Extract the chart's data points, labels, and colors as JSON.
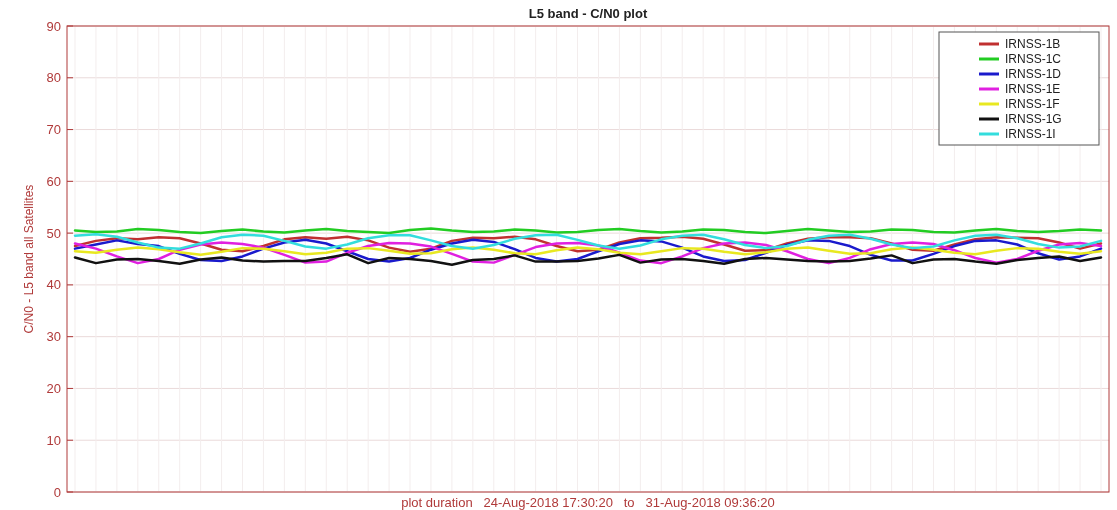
{
  "chart_data": {
    "type": "line",
    "title": "L5 band - C/N0 plot",
    "xlabel": "plot duration   24-Aug-2018 17:30:20   to   31-Aug-2018 09:36:20",
    "ylabel": "C/N0 - L5 band all Satellites",
    "categories": [
      null,
      null,
      null,
      null,
      null,
      null,
      null,
      null,
      null,
      null,
      null,
      null,
      null,
      null,
      null,
      null,
      null,
      null,
      null,
      null,
      null,
      null,
      null,
      null,
      null,
      null,
      null,
      null,
      null,
      null,
      null,
      null,
      null,
      null,
      null,
      null,
      null,
      null,
      null,
      null,
      null,
      null,
      null,
      null,
      null,
      null,
      null,
      null,
      null,
      null
    ],
    "ylim": [
      0,
      90
    ],
    "yticks": [
      0,
      10,
      20,
      30,
      40,
      50,
      60,
      70,
      80,
      90
    ],
    "grid": true,
    "legend": "top right",
    "tick_labels": "y",
    "series": [
      {
        "name": "IRNSS-1B",
        "color": "#c03030",
        "values": [
          47.5,
          48.5,
          49.0,
          48.8,
          49.2,
          49.0,
          48.0,
          46.8,
          46.5,
          47.5,
          48.8,
          49.2,
          48.9,
          49.3,
          48.6,
          47.2,
          46.4,
          47.0,
          48.5,
          49.1,
          49.0,
          49.3,
          48.8,
          47.5,
          46.5,
          46.8,
          48.2,
          49.0,
          49.1,
          49.3,
          48.9,
          47.8,
          46.6,
          46.7,
          48.0,
          48.9,
          49.2,
          49.2,
          49.0,
          48.0,
          46.8,
          46.6,
          47.8,
          48.8,
          49.2,
          49.1,
          49.0,
          48.2,
          47.0,
          48.0
        ]
      },
      {
        "name": "IRNSS-1C",
        "color": "#22cc22",
        "values": [
          50.5,
          50.2,
          50.3,
          50.8,
          50.6,
          50.2,
          50.0,
          50.4,
          50.7,
          50.3,
          50.1,
          50.5,
          50.8,
          50.4,
          50.2,
          50.0,
          50.6,
          50.9,
          50.5,
          50.2,
          50.3,
          50.7,
          50.5,
          50.1,
          50.2,
          50.6,
          50.8,
          50.4,
          50.1,
          50.3,
          50.7,
          50.6,
          50.2,
          50.0,
          50.4,
          50.8,
          50.5,
          50.2,
          50.3,
          50.7,
          50.6,
          50.2,
          50.1,
          50.5,
          50.8,
          50.4,
          50.2,
          50.4,
          50.7,
          50.5
        ]
      },
      {
        "name": "IRNSS-1D",
        "color": "#1a1acc",
        "values": [
          47.0,
          47.8,
          48.6,
          47.9,
          47.5,
          46.0,
          44.8,
          44.6,
          45.5,
          47.0,
          48.2,
          48.7,
          48.0,
          46.5,
          45.0,
          44.5,
          45.2,
          46.8,
          48.0,
          48.7,
          48.3,
          46.9,
          45.2,
          44.5,
          45.0,
          46.5,
          47.9,
          48.6,
          48.4,
          47.2,
          45.5,
          44.6,
          44.8,
          46.2,
          47.7,
          48.6,
          48.5,
          47.5,
          45.8,
          44.7,
          44.7,
          46.0,
          47.5,
          48.5,
          48.6,
          47.8,
          46.1,
          44.9,
          45.5,
          47.0
        ]
      },
      {
        "name": "IRNSS-1E",
        "color": "#e020e0",
        "values": [
          48.0,
          47.0,
          45.5,
          44.2,
          45.0,
          46.8,
          47.8,
          48.2,
          47.9,
          47.2,
          45.8,
          44.3,
          44.5,
          46.2,
          47.5,
          48.1,
          48.0,
          47.4,
          46.0,
          44.5,
          44.3,
          45.8,
          47.3,
          48.0,
          48.1,
          47.6,
          46.2,
          44.7,
          44.2,
          45.5,
          47.1,
          48.0,
          48.2,
          47.7,
          46.5,
          45.0,
          44.2,
          45.2,
          46.9,
          47.9,
          48.2,
          47.9,
          46.7,
          45.2,
          44.3,
          45.0,
          46.6,
          47.8,
          48.1,
          47.5
        ]
      },
      {
        "name": "IRNSS-1F",
        "color": "#e8e820",
        "values": [
          46.5,
          46.2,
          46.8,
          47.2,
          46.9,
          46.3,
          45.8,
          46.4,
          47.1,
          47.0,
          46.5,
          45.9,
          46.2,
          47.0,
          47.1,
          46.6,
          46.0,
          46.1,
          46.9,
          47.2,
          46.8,
          46.1,
          45.9,
          46.7,
          47.2,
          46.9,
          46.2,
          45.9,
          46.5,
          47.1,
          47.0,
          46.4,
          45.9,
          46.3,
          47.0,
          47.2,
          46.6,
          46.0,
          46.1,
          46.9,
          47.2,
          46.8,
          46.2,
          45.9,
          46.6,
          47.1,
          47.0,
          46.4,
          46.0,
          46.5
        ]
      },
      {
        "name": "IRNSS-1G",
        "color": "#111111",
        "values": [
          45.3,
          44.2,
          44.9,
          45.0,
          44.6,
          44.1,
          44.9,
          45.3,
          44.7,
          44.5,
          44.6,
          44.6,
          45.2,
          45.9,
          44.2,
          45.2,
          45.0,
          44.6,
          43.9,
          44.8,
          45.0,
          45.7,
          44.5,
          44.5,
          44.6,
          45.1,
          45.8,
          44.3,
          44.9,
          45.0,
          44.6,
          44.1,
          45.0,
          45.2,
          44.9,
          44.6,
          44.5,
          44.6,
          45.1,
          45.7,
          44.2,
          44.9,
          45.0,
          44.5,
          44.1,
          44.8,
          45.2,
          45.5,
          44.6,
          45.3
        ]
      },
      {
        "name": "IRNSS-1I",
        "color": "#33dddd",
        "values": [
          49.5,
          49.8,
          49.3,
          48.2,
          47.2,
          47.0,
          48.0,
          49.2,
          49.7,
          49.5,
          48.5,
          47.4,
          47.0,
          47.8,
          49.0,
          49.6,
          49.6,
          48.6,
          47.5,
          47.0,
          47.7,
          48.9,
          49.6,
          49.7,
          48.7,
          47.6,
          47.0,
          47.6,
          48.8,
          49.5,
          49.7,
          48.8,
          47.7,
          47.1,
          47.5,
          48.7,
          49.5,
          49.7,
          48.9,
          47.8,
          47.1,
          47.4,
          48.6,
          49.5,
          49.7,
          49.0,
          47.9,
          47.2,
          47.4,
          48.5
        ]
      }
    ]
  }
}
